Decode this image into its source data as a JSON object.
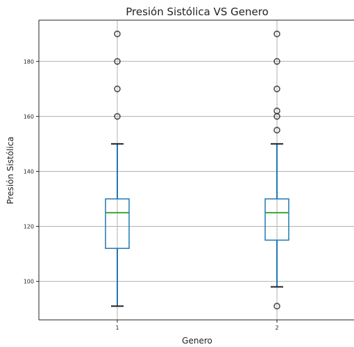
{
  "chart_data": {
    "type": "boxplot",
    "title": "Presión Sistólica VS Genero",
    "xlabel": "Genero",
    "ylabel": "Presión Sistólica",
    "categories": [
      "1",
      "2"
    ],
    "ylim": [
      86,
      195
    ],
    "yticks": [
      100,
      120,
      140,
      160,
      180
    ],
    "grid": true,
    "colors": {
      "box": "#1f77b4",
      "median": "#2ca02c",
      "whisker": "#1f77b4",
      "cap": "#222222",
      "grid": "#b0b0b0",
      "flier_edge": "#222222",
      "axes": "#222222"
    },
    "series": [
      {
        "category": "1",
        "whisker_low": 91,
        "q1": 112,
        "median": 125,
        "q3": 130,
        "whisker_high": 150,
        "fliers": [
          160,
          170,
          180,
          190
        ]
      },
      {
        "category": "2",
        "whisker_low": 98,
        "q1": 115,
        "median": 125,
        "q3": 130,
        "whisker_high": 150,
        "fliers": [
          91,
          155,
          160,
          162,
          170,
          180,
          190
        ]
      }
    ]
  }
}
